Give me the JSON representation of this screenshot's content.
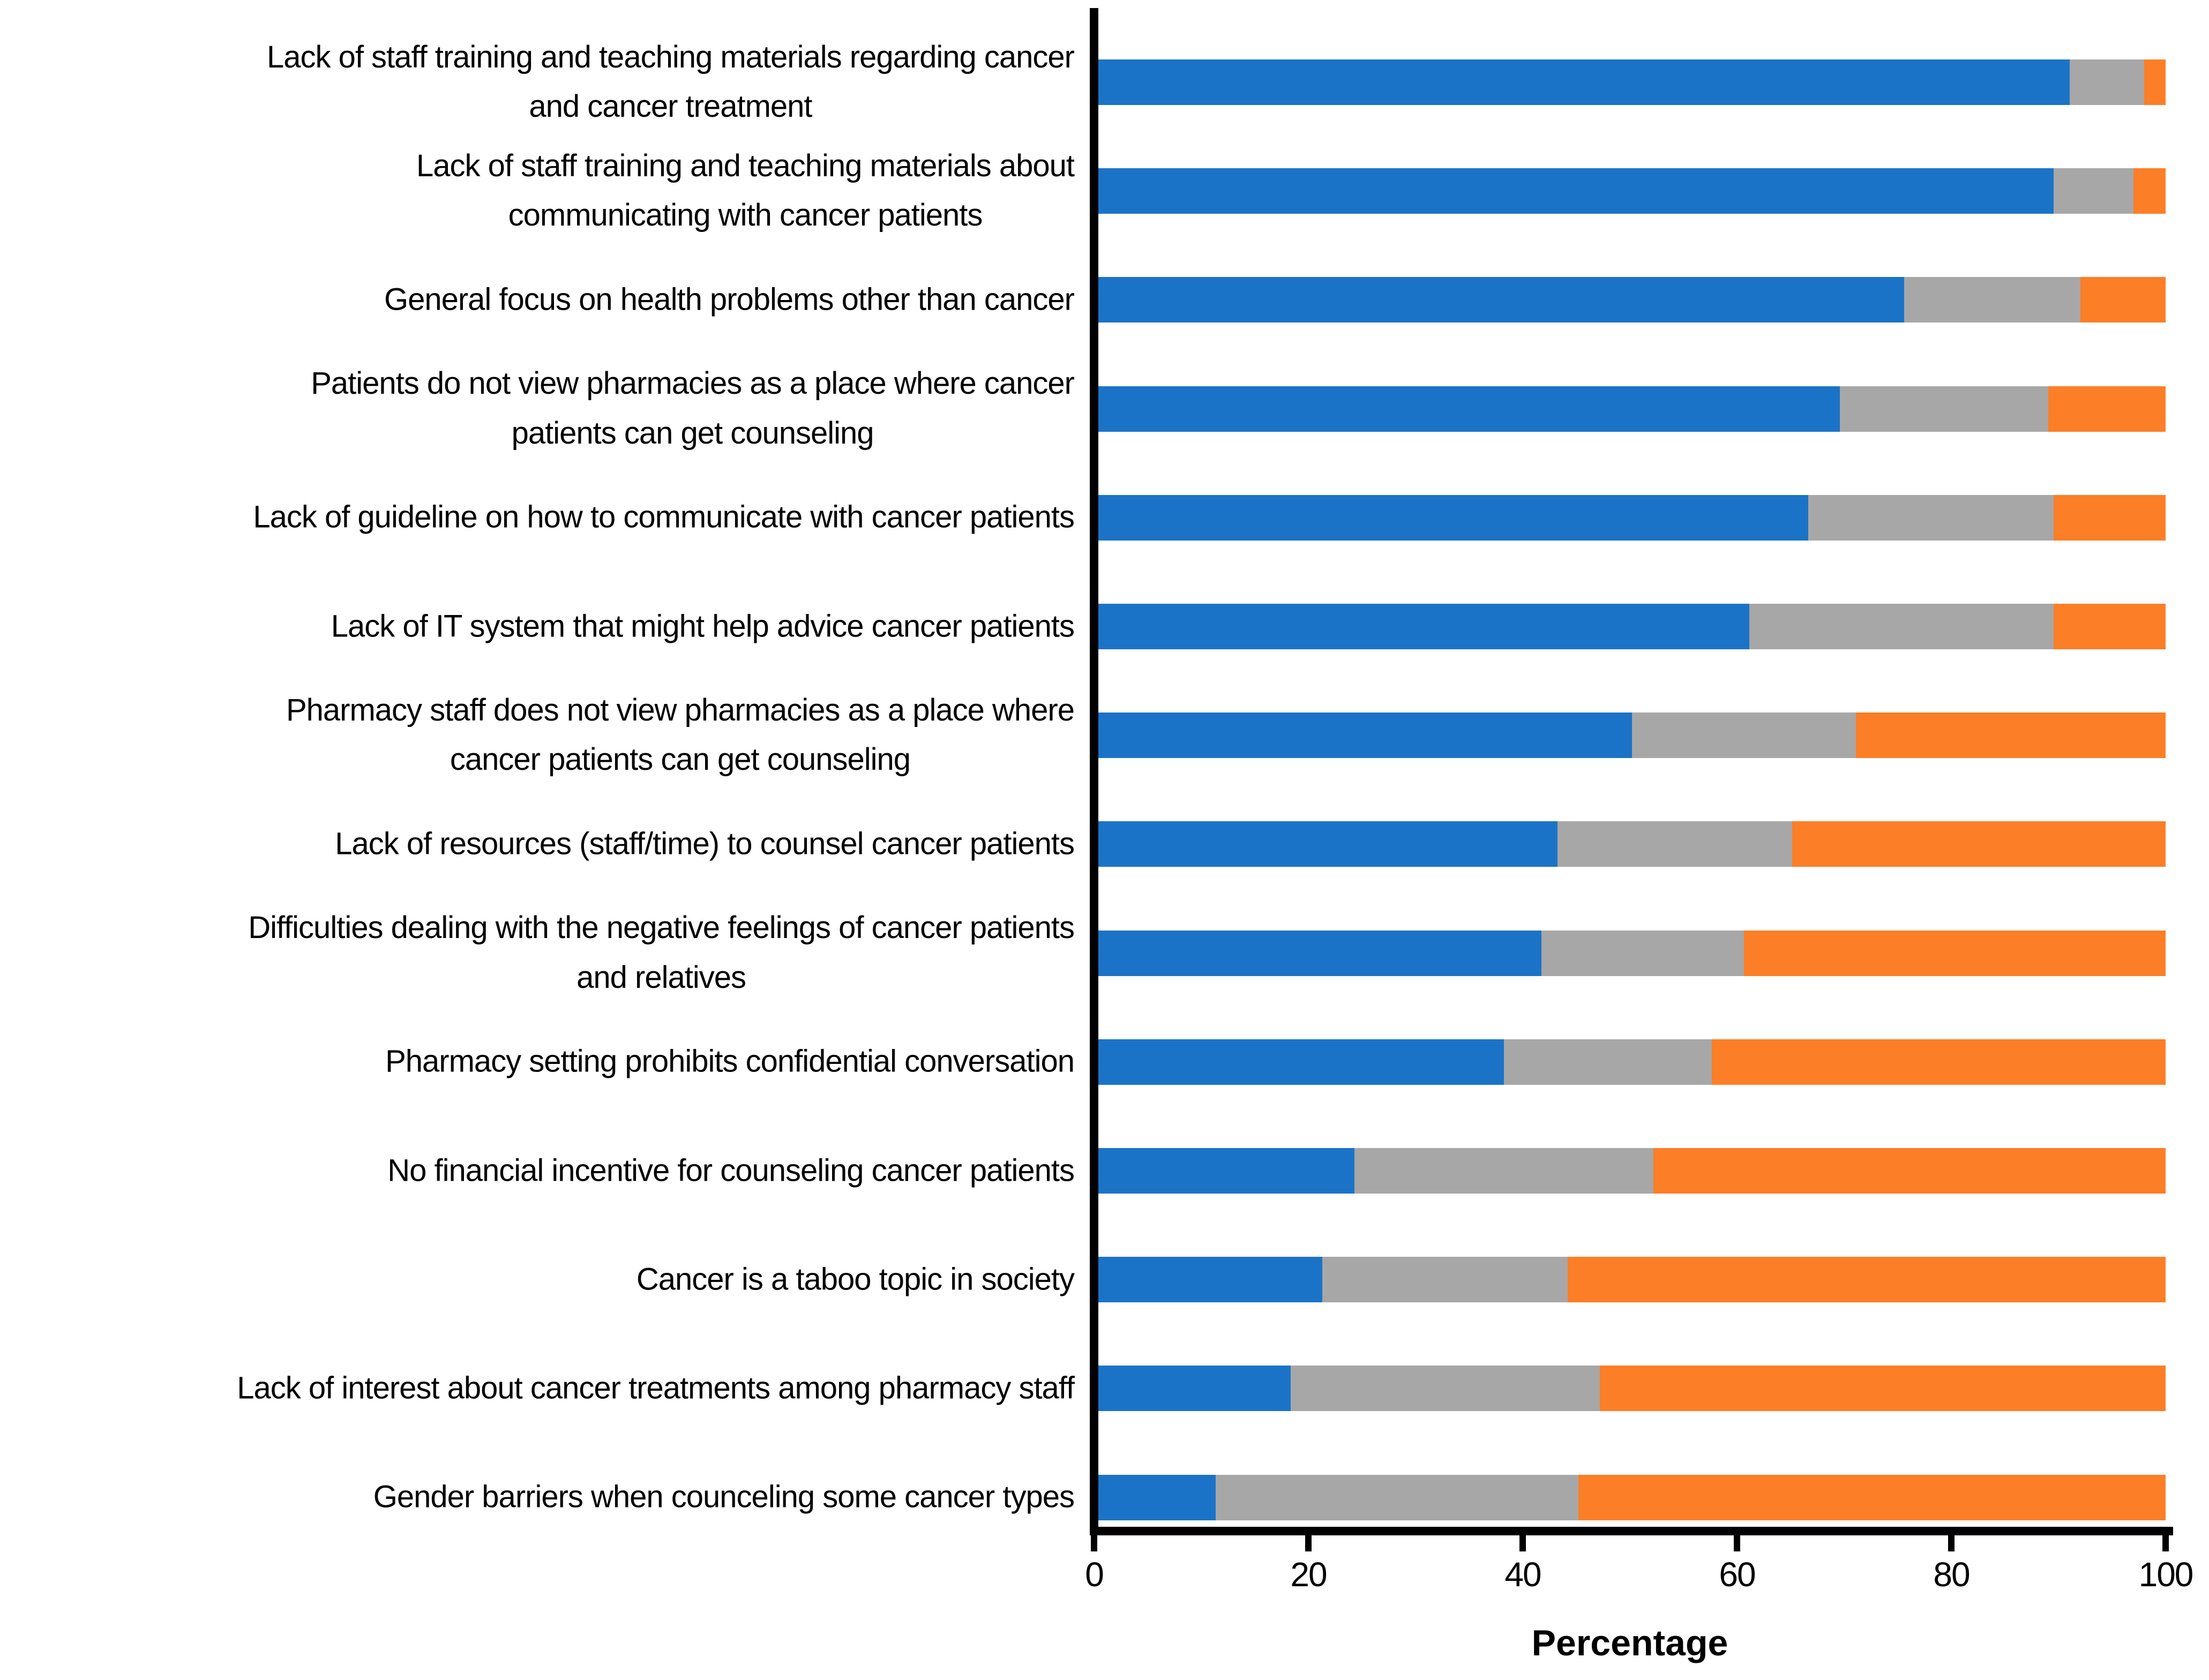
{
  "chart_data": {
    "type": "bar",
    "orientation": "horizontal",
    "stacked": true,
    "title": "",
    "xlabel": "Percentage",
    "xlim": [
      0,
      100
    ],
    "x_ticks": [
      0,
      20,
      40,
      60,
      80,
      100
    ],
    "grid": false,
    "legend": "none",
    "axis_color": "#000000",
    "categories": [
      "Lack of staff training and teaching materials regarding cancer\nand cancer treatment",
      "Lack of staff training and teaching materials about\ncommunicating with cancer patients",
      "General focus on health problems other than cancer",
      "Patients do not view pharmacies as a place where cancer\npatients can get counseling",
      "Lack of guideline on how to communicate with cancer patients",
      "Lack of IT system that might help advice cancer patients",
      "Pharmacy staff does not view pharmacies as a place where\ncancer patients can get counseling",
      "Lack of resources (staff/time) to counsel cancer patients",
      "Difficulties dealing with the negative feelings of cancer patients\nand relatives",
      "Pharmacy setting prohibits confidential conversation",
      "No financial incentive for counseling cancer patients",
      "Cancer is a taboo topic in society",
      "Lack of interest about cancer treatments among pharmacy staff",
      "Gender barriers when counceling some cancer types"
    ],
    "series": [
      {
        "name": "blue",
        "color": "#1B73C8",
        "values": [
          91,
          89.5,
          75.5,
          69.5,
          66.5,
          61,
          50,
          43,
          41.5,
          38,
          24,
          21,
          18,
          11
        ]
      },
      {
        "name": "gray",
        "color": "#A7A7A7",
        "values": [
          7,
          7.5,
          16.5,
          19.5,
          23,
          28.5,
          21,
          22,
          19,
          19.5,
          28,
          23,
          29,
          34
        ]
      },
      {
        "name": "orange",
        "color": "#FC7E26",
        "values": [
          2,
          3,
          8,
          11,
          10.5,
          10.5,
          29,
          35,
          39.5,
          42.5,
          48,
          56,
          53,
          55
        ]
      }
    ]
  }
}
